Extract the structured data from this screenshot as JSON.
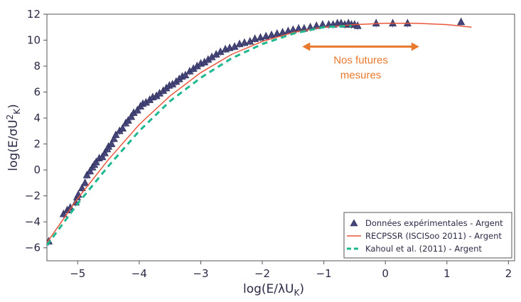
{
  "chart_data": {
    "type": "scatter",
    "xlabel": "log(E/λU",
    "xlabel_sub": "K",
    "xlabel_end": ")",
    "ylabel": "log(E/σU",
    "ylabel_sup": "2",
    "ylabel_sub": "K",
    "ylabel_end": ")",
    "xlim": [
      -5.5,
      2.1
    ],
    "ylim": [
      -7,
      12
    ],
    "x_ticks": [
      -5,
      -4,
      -3,
      -2,
      -1,
      0,
      1,
      2
    ],
    "x_tick_labels": [
      "−5",
      "−4",
      "−3",
      "−2",
      "−1",
      "0",
      "1",
      "2"
    ],
    "y_ticks": [
      -6,
      -4,
      -2,
      0,
      2,
      4,
      6,
      8,
      10,
      12
    ],
    "y_tick_labels": [
      "−6",
      "−4",
      "−2",
      "0",
      "2",
      "4",
      "6",
      "8",
      "10",
      "12"
    ],
    "grid": false,
    "legend_position": "bottom-right",
    "series": [
      {
        "name": "Données expérimentales - Argent",
        "kind": "markers",
        "color": "#45457a",
        "x": [
          -5.47,
          -5.23,
          -5.17,
          -5.12,
          -5.03,
          -5.01,
          -4.99,
          -4.93,
          -4.88,
          -4.85,
          -4.8,
          -4.76,
          -4.73,
          -4.7,
          -4.65,
          -4.6,
          -4.56,
          -4.52,
          -4.5,
          -4.45,
          -4.41,
          -4.38,
          -4.32,
          -4.27,
          -4.22,
          -4.18,
          -4.13,
          -4.09,
          -4.03,
          -3.98,
          -3.94,
          -3.89,
          -3.83,
          -3.78,
          -3.72,
          -3.67,
          -3.61,
          -3.56,
          -3.51,
          -3.46,
          -3.4,
          -3.35,
          -3.3,
          -3.25,
          -3.18,
          -3.12,
          -3.06,
          -3.0,
          -2.94,
          -2.88,
          -2.82,
          -2.75,
          -2.68,
          -2.6,
          -2.53,
          -2.45,
          -2.37,
          -2.29,
          -2.2,
          -2.12,
          -2.03,
          -1.94,
          -1.85,
          -1.76,
          -1.67,
          -1.58,
          -1.5,
          -1.41,
          -1.32,
          -1.22,
          -1.12,
          -1.02,
          -0.92,
          -0.85,
          -0.78,
          -0.72,
          -0.66,
          -0.6,
          -0.55,
          -0.5,
          -0.45,
          -0.15,
          0.12,
          0.36,
          1.23
        ],
        "y": [
          -5.5,
          -3.4,
          -3.1,
          -2.9,
          -2.5,
          -2.1,
          -1.9,
          -1.4,
          -1.0,
          -0.4,
          -0.1,
          0.2,
          0.4,
          0.6,
          0.9,
          1.0,
          1.3,
          1.6,
          1.8,
          2.0,
          2.4,
          2.7,
          3.0,
          3.2,
          3.6,
          3.8,
          4.1,
          4.4,
          4.6,
          4.9,
          5.1,
          5.2,
          5.4,
          5.6,
          5.7,
          5.9,
          6.1,
          6.3,
          6.5,
          6.6,
          6.8,
          7.0,
          7.2,
          7.3,
          7.6,
          7.8,
          8.0,
          8.2,
          8.3,
          8.5,
          8.7,
          8.9,
          9.1,
          9.3,
          9.4,
          9.5,
          9.7,
          9.8,
          9.9,
          10.1,
          10.2,
          10.3,
          10.4,
          10.5,
          10.6,
          10.7,
          10.8,
          10.9,
          10.9,
          11.0,
          11.1,
          11.2,
          11.2,
          11.2,
          11.3,
          11.3,
          11.2,
          11.3,
          11.2,
          11.2,
          11.1,
          11.3,
          11.3,
          11.3,
          11.4
        ]
      },
      {
        "name": "RECPSSR (ISCISoo 2011) - Argent",
        "kind": "line",
        "color": "#e8573c",
        "x": [
          -5.5,
          -5.0,
          -4.5,
          -4.0,
          -3.5,
          -3.0,
          -2.5,
          -2.0,
          -1.5,
          -1.0,
          -0.5,
          0.0,
          0.5,
          1.0,
          1.4
        ],
        "y": [
          -5.6,
          -2.2,
          0.8,
          3.5,
          5.7,
          7.5,
          8.9,
          9.9,
          10.6,
          11.0,
          11.2,
          11.3,
          11.3,
          11.2,
          11.0
        ]
      },
      {
        "name": "Kahoul et al. (2011) - Argent",
        "kind": "dashed",
        "color": "#1db88f",
        "x": [
          -5.5,
          -5.0,
          -4.5,
          -4.0,
          -3.5,
          -3.0,
          -2.5,
          -2.0,
          -1.5,
          -1.0,
          -0.55
        ],
        "y": [
          -5.8,
          -2.6,
          0.3,
          3.0,
          5.3,
          7.1,
          8.6,
          9.7,
          10.5,
          11.0,
          11.1
        ]
      }
    ],
    "annotation": {
      "line1": "Nos futures",
      "line2": "mesures",
      "arrow_x": [
        -1.35,
        0.55
      ],
      "arrow_y": 9.5,
      "color": "#e8792d"
    }
  }
}
